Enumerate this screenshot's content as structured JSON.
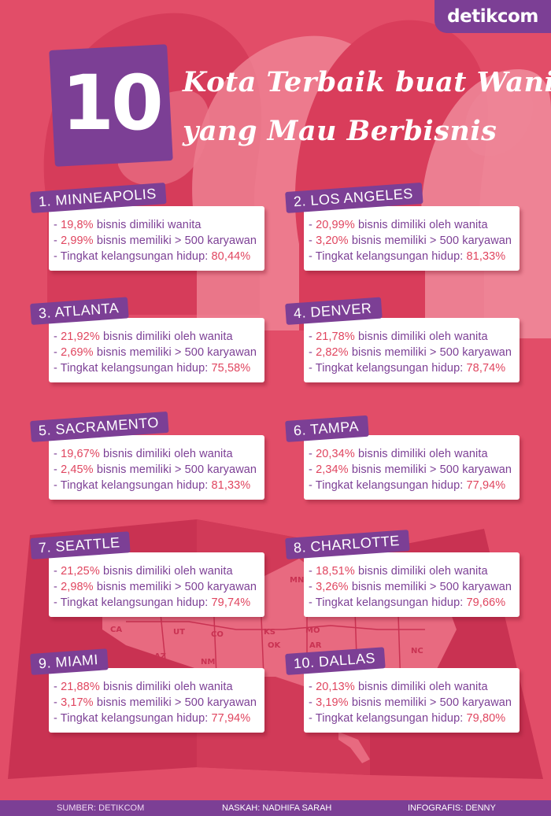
{
  "brand": {
    "logo_text": "detikcom"
  },
  "header": {
    "number": "10",
    "title_line1": "Kota Terbaik buat Wanita",
    "title_line2": "yang Mau Berbisnis"
  },
  "labels": {
    "owned": "bisnis dimiliki oleh wanita",
    "owned_short": "bisnis dimiliki wanita",
    "employees": "bisnis memiliki > 500 karyawan",
    "survival": "Tingkat kelangsungan hidup:"
  },
  "cities": [
    {
      "name": "1. MINNEAPOLIS",
      "owned": "19,8%",
      "employees": "2,99%",
      "survival": "80,44%"
    },
    {
      "name": "2. LOS ANGELES",
      "owned": "20,99%",
      "employees": "3,20%",
      "survival": "81,33%"
    },
    {
      "name": "3. ATLANTA",
      "owned": "21,92%",
      "employees": "2,69%",
      "survival": "75,58%"
    },
    {
      "name": "4. DENVER",
      "owned": "21,78%",
      "employees": "2,82%",
      "survival": "78,74%"
    },
    {
      "name": "5. SACRAMENTO",
      "owned": "19,67%",
      "employees": "2,45%",
      "survival": "81,33%"
    },
    {
      "name": "6. TAMPA",
      "owned": "20,34%",
      "employees": "2,34%",
      "survival": "77,94%"
    },
    {
      "name": "7. SEATTLE",
      "owned": "21,25%",
      "employees": "2,98%",
      "survival": "79,74%"
    },
    {
      "name": "8. CHARLOTTE",
      "owned": "18,51%",
      "employees": "3,26%",
      "survival": "79,66%"
    },
    {
      "name": "9. MIAMI",
      "owned": "21,88%",
      "employees": "3,17%",
      "survival": "77,94%"
    },
    {
      "name": "10. DALLAS",
      "owned": "20,13%",
      "employees": "3,19%",
      "survival": "79,80%"
    }
  ],
  "map_states": [
    "CA",
    "UT",
    "CO",
    "KS",
    "MO",
    "AZ",
    "NM",
    "OK",
    "AR",
    "MN",
    "NC"
  ],
  "footer": {
    "source": "SUMBER:  DETIKCOM",
    "writer": "NASKAH: NADHIFA SARAH",
    "designer": "INFOGRAFIS: DENNY"
  },
  "colors": {
    "background": "#e24d68",
    "purple": "#7c3f95",
    "value_red": "#e0455f",
    "white": "#ffffff"
  }
}
